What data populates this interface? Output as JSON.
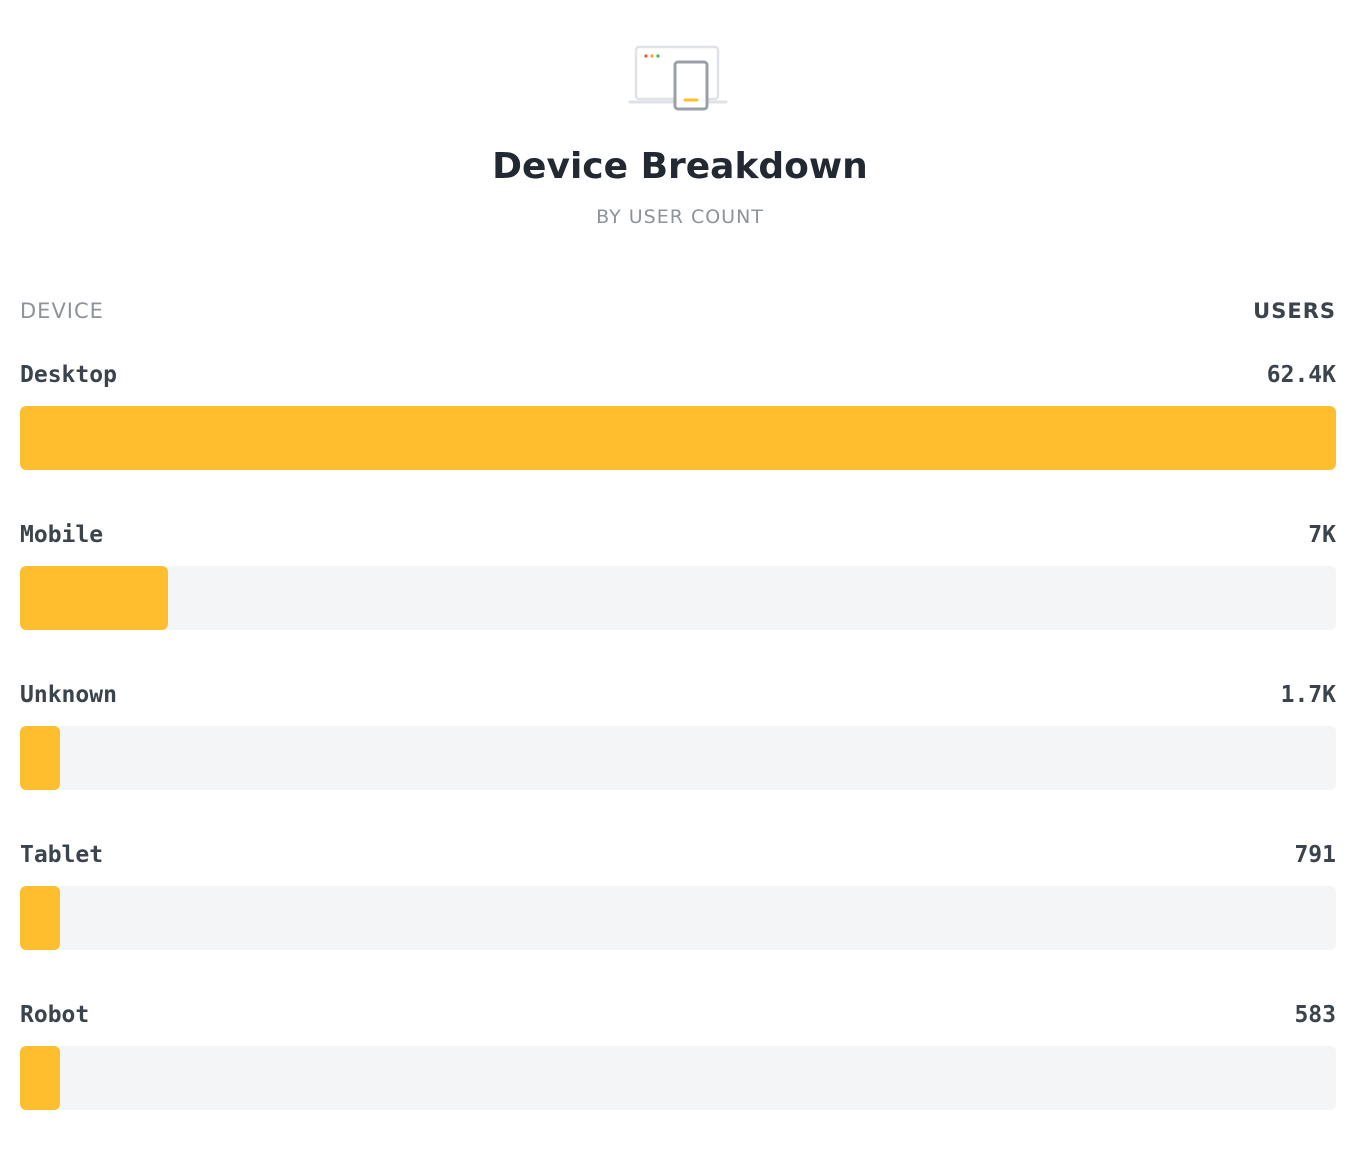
{
  "header": {
    "icon": "device-icon",
    "title": "Device Breakdown",
    "subtitle": "BY USER COUNT"
  },
  "columns": {
    "left": "DEVICE",
    "right": "USERS"
  },
  "colors": {
    "bar": "#FFBE2E",
    "track": "#F4F5F7",
    "text": "#3B434C",
    "muted": "#8C939B"
  },
  "chart_data": {
    "type": "bar",
    "orientation": "horizontal",
    "title": "Device Breakdown",
    "subtitle": "BY USER COUNT",
    "categories": [
      "Desktop",
      "Mobile",
      "Unknown",
      "Tablet",
      "Robot"
    ],
    "values": [
      62400,
      7000,
      1700,
      791,
      583
    ],
    "value_labels": [
      "62.4K",
      "7K",
      "1.7K",
      "791",
      "583"
    ],
    "xlim": [
      0,
      62400
    ],
    "grid": false,
    "legend": "none"
  }
}
